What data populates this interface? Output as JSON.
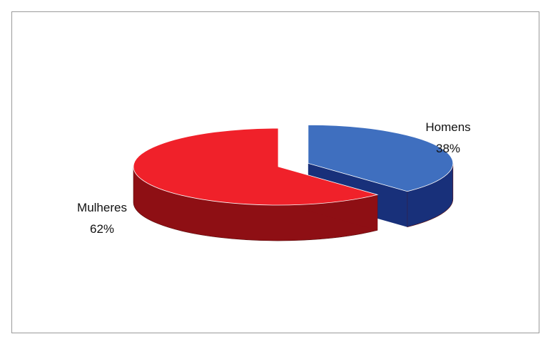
{
  "chart_data": {
    "type": "pie",
    "categories": [
      "Mulheres",
      "Homens"
    ],
    "values": [
      62,
      38
    ],
    "labels": [
      {
        "name": "Mulheres",
        "percent": "62%"
      },
      {
        "name": "Homens",
        "percent": "38%"
      }
    ],
    "colors": {
      "Mulheres": {
        "top": "#f0212a",
        "side": "#8e0f14"
      },
      "Homens": {
        "top": "#3f6fbf",
        "side": "#18307a"
      }
    },
    "exploded": "Homens",
    "style": "3d",
    "legend": "none",
    "grid": false
  }
}
